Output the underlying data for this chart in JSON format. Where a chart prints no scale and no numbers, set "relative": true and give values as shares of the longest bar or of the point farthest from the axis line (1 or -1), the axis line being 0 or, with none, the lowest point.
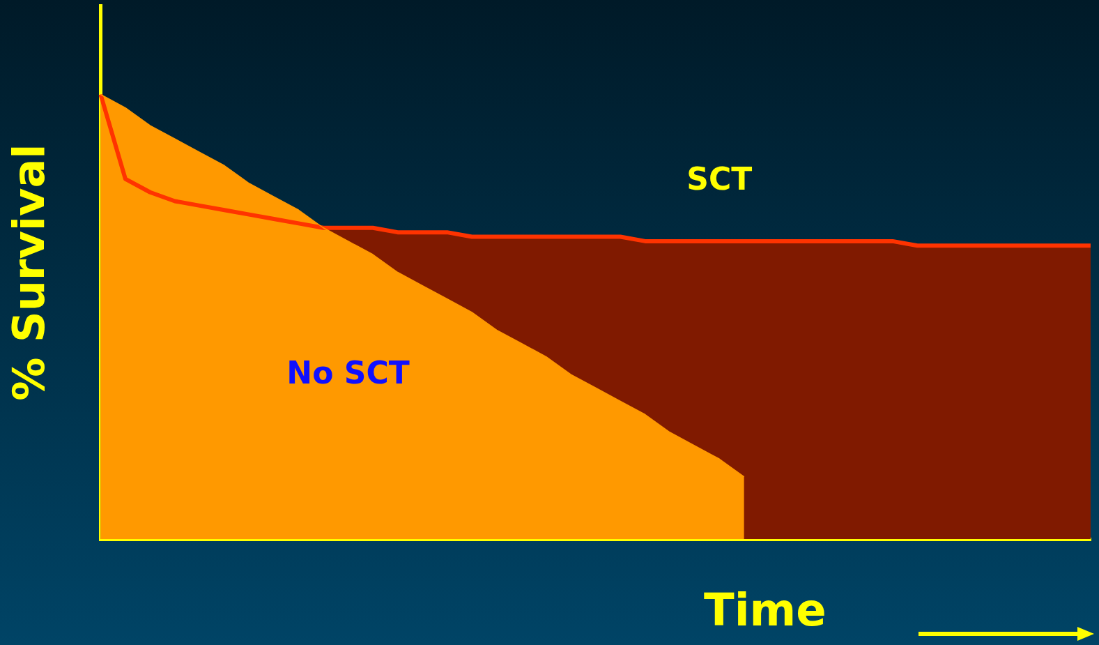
{
  "chart_data": {
    "type": "area",
    "relative": true,
    "xlabel": "Time",
    "ylabel": "% Survival",
    "legend": false,
    "grid": false,
    "categories": [
      null,
      null,
      null,
      null,
      null,
      null,
      null,
      null,
      null,
      null,
      null,
      null,
      null,
      null,
      null,
      null,
      null,
      null,
      null,
      null,
      null,
      null,
      null,
      null,
      null,
      null,
      null,
      null,
      null,
      null,
      null,
      null,
      null,
      null,
      null,
      null,
      null,
      null,
      null,
      null,
      null
    ],
    "series": [
      {
        "name": "No SCT",
        "color": "#ff9900",
        "values": [
          1,
          0.97,
          0.93,
          0.9,
          0.87,
          0.84,
          0.8,
          0.77,
          0.74,
          0.7,
          0.67,
          0.64,
          0.6,
          0.57,
          0.54,
          0.51,
          0.47,
          0.44,
          0.41,
          0.37,
          0.34,
          0.31,
          0.28,
          0.24,
          0.21,
          0.18,
          0.14,
          null,
          null,
          null,
          null,
          null,
          null,
          null,
          null,
          null,
          null,
          null,
          null,
          null,
          null
        ]
      },
      {
        "name": "SCT",
        "color": "#ff3300",
        "values": [
          1,
          0.81,
          0.78,
          0.76,
          0.75,
          0.74,
          0.73,
          0.72,
          0.71,
          0.7,
          0.7,
          0.7,
          0.69,
          0.69,
          0.69,
          0.68,
          0.68,
          0.68,
          0.68,
          0.68,
          0.68,
          0.68,
          0.67,
          0.67,
          0.67,
          0.67,
          0.67,
          0.67,
          0.67,
          0.67,
          0.67,
          0.67,
          0.67,
          0.66,
          0.66,
          0.66,
          0.66,
          0.66,
          0.66,
          0.66,
          0.66
        ]
      }
    ]
  }
}
